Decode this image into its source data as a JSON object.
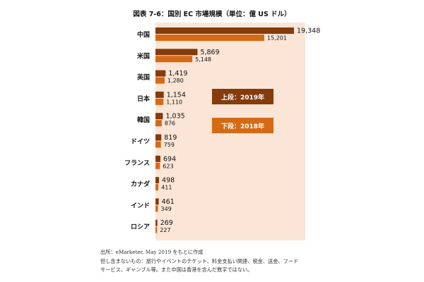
{
  "chart_data": {
    "type": "bar",
    "orientation": "horizontal",
    "title": "図表 7-6：国別 EC 市場規模（単位：億 US ドル）",
    "categories": [
      "中国",
      "米国",
      "英国",
      "日本",
      "韓国",
      "ドイツ",
      "フランス",
      "カナダ",
      "インド",
      "ロシア"
    ],
    "series": [
      {
        "name": "上段：2019年",
        "color": "#843c0c",
        "values": [
          19348,
          5869,
          1419,
          1154,
          1035,
          819,
          694,
          498,
          461,
          269
        ],
        "labels": [
          "19,348",
          "5,869",
          "1,419",
          "1,154",
          "1,035",
          "819",
          "694",
          "498",
          "461",
          "269"
        ]
      },
      {
        "name": "下段：2018年",
        "color": "#d56a16",
        "values": [
          15201,
          5148,
          1280,
          1110,
          876,
          759,
          623,
          411,
          349,
          227
        ],
        "labels": [
          "15,201",
          "5,148",
          "1,280",
          "1,110",
          "876",
          "759",
          "623",
          "411",
          "349",
          "227"
        ]
      }
    ],
    "xlim": [
      0,
      19348
    ],
    "grid": false,
    "legend_position": "center-right inside plot"
  },
  "notes": {
    "source": "出所：eMarketer, May 2019 をもとに作成",
    "excluded_line1": "但し含まないもの：旅行やイベントのチケット、料金支払い関連、税金、送金、フード",
    "excluded_line2": "サービス、ギャンブル等。また中国は香港を含んだ数字ではない。"
  },
  "colors": {
    "panel_background": "#fbe5d6",
    "bar_2019": "#843c0c",
    "bar_2018": "#d56a16"
  }
}
